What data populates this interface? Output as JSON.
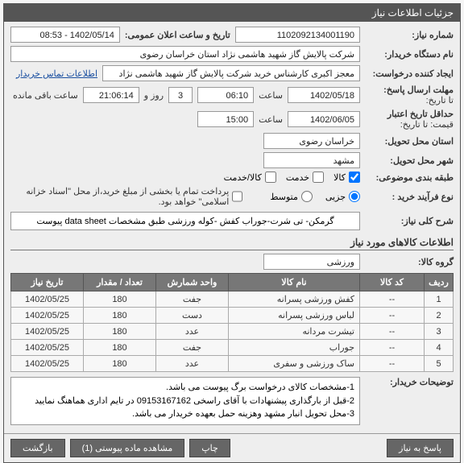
{
  "header": {
    "title": "جزئیات اطلاعات نیاز"
  },
  "form": {
    "need_no_label": "شماره نیاز:",
    "need_no": "1102092134001190",
    "pubdate_label": "تاریخ و ساعت اعلان عمومی:",
    "pubdate": "1402/05/14 - 08:53",
    "buyer_org_label": "نام دستگاه خریدار:",
    "buyer_org": "شرکت پالایش گاز شهید هاشمی نژاد   استان خراسان رضوی",
    "creator_label": "ایجاد کننده درخواست:",
    "creator": "معجز اکبری کارشناس خرید شرکت پالایش گاز شهید هاشمی نژاد   استان خراسا",
    "contact_link": "اطلاعات تماس خریدار",
    "deadline_label": "مهلت ارسال پاسخ:",
    "deadline_sub": "تا تاریخ:",
    "deadline_date": "1402/05/18",
    "time_lbl": "ساعت",
    "deadline_time": "06:10",
    "remain": "3",
    "remain_unit": "روز و",
    "remain_time": "21:06:14",
    "remain_after": "ساعت باقی مانده",
    "validity_label": "حداقل تاریخ اعتبار",
    "validity_sub": "قیمت: تا تاریخ:",
    "validity_date": "1402/06/05",
    "validity_time": "15:00",
    "province_label": "استان محل تحویل:",
    "province": "خراسان رضوی",
    "city_label": "شهر محل تحویل:",
    "city": "مشهد",
    "cat_label": "طبقه بندی موضوعی:",
    "cat_items": [
      {
        "label": "کالا",
        "checked": true
      },
      {
        "label": "خدمت",
        "checked": false
      },
      {
        "label": "کالا/خدمت",
        "checked": false
      }
    ],
    "buyproc_label": "نوع فرآیند خرید :",
    "buyproc_items": [
      {
        "label": "جزیی",
        "checked": true
      },
      {
        "label": "متوسط",
        "checked": false
      }
    ],
    "buyproc_note": "پرداخت تمام یا بخشی از مبلغ خرید،از محل \"اسناد خزانه اسلامی\" خواهد بود.",
    "buyproc_note_checked": false,
    "desc_label": "شرح کلی نیاز:",
    "desc": "گرمکن- تی شرت-جوراب کفش -کوله ورزشی طبق مشخصات data sheet پیوست"
  },
  "goods": {
    "section_title": "اطلاعات کالاهای مورد نیاز",
    "group_label": "گروه کالا:",
    "group_value": "ورزشی",
    "columns": [
      "ردیف",
      "کد کالا",
      "نام کالا",
      "واحد شمارش",
      "تعداد / مقدار",
      "تاریخ نیاز"
    ],
    "rows": [
      {
        "no": "1",
        "code": "--",
        "name": "کفش ورزشی پسرانه",
        "unit": "جفت",
        "qty": "180",
        "date": "1402/05/25"
      },
      {
        "no": "2",
        "code": "--",
        "name": "لباس ورزشی پسرانه",
        "unit": "دست",
        "qty": "180",
        "date": "1402/05/25"
      },
      {
        "no": "3",
        "code": "--",
        "name": "تیشرت مردانه",
        "unit": "عدد",
        "qty": "180",
        "date": "1402/05/25"
      },
      {
        "no": "4",
        "code": "--",
        "name": "جوراب",
        "unit": "جفت",
        "qty": "180",
        "date": "1402/05/25"
      },
      {
        "no": "5",
        "code": "--",
        "name": "ساک ورزشی و سفری",
        "unit": "عدد",
        "qty": "180",
        "date": "1402/05/25"
      }
    ],
    "watermark": ". 8834۶9"
  },
  "buyer_notes": {
    "label": "توضیحات خریدار:",
    "lines": [
      "1-مشخصات کالای درخواست برگ پیوست می باشد.",
      "2-قبل از بارگذاری پیشنهادات با آقای راسخی 09153167162 در تایم اداری هماهنگ نمایید",
      "3-محل تحویل انبار مشهد وهزینه حمل بعهده خریدار می باشد."
    ]
  },
  "footer": {
    "reply": "پاسخ به نیاز",
    "print": "چاپ",
    "attach": "مشاهده ماده پیوستی (1)",
    "back": "بازگشت"
  }
}
